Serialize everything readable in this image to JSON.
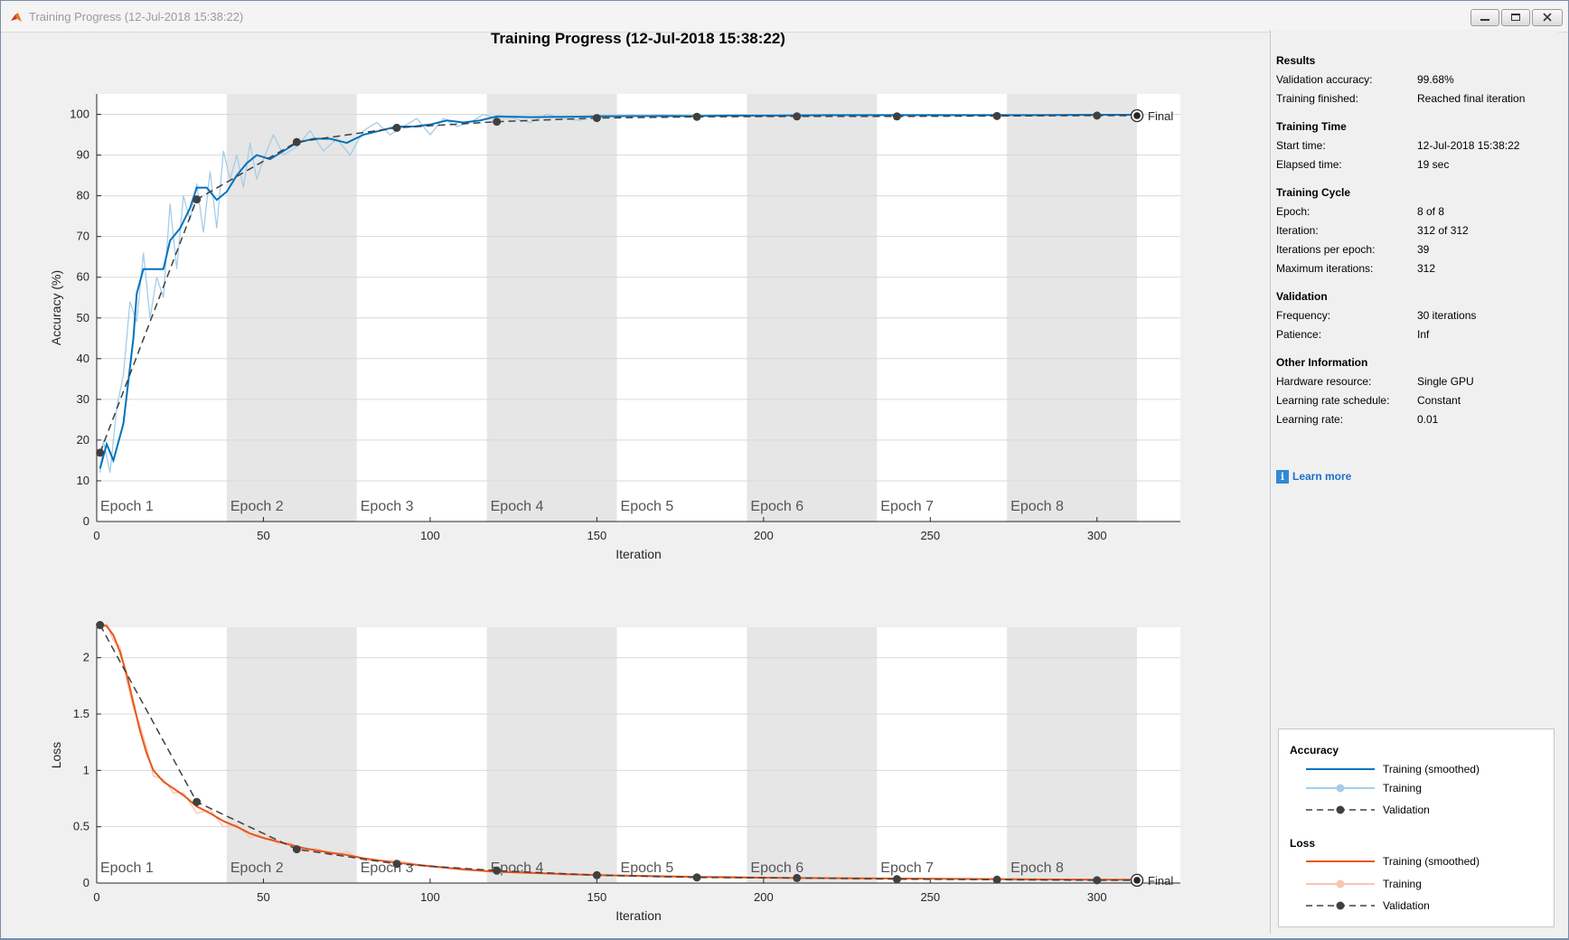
{
  "window": {
    "title": "Training Progress (12-Jul-2018 15:38:22)"
  },
  "colors": {
    "accuracy_smoothed": "#0072bd",
    "accuracy_raw": "#a6cde8",
    "loss_smoothed": "#e8551a",
    "loss_raw": "#f6c6b0",
    "validation": "#404040",
    "epoch_band": "#e6e6e6"
  },
  "chart_data": [
    {
      "type": "line",
      "title": "Training Progress (12-Jul-2018 15:38:22)",
      "xlabel": "Iteration",
      "ylabel": "Accuracy (%)",
      "xlim": [
        0,
        325
      ],
      "ylim": [
        0,
        105
      ],
      "xticks": [
        "0",
        "50",
        "100",
        "150",
        "200",
        "250",
        "300"
      ],
      "yticks": [
        "0",
        "10",
        "20",
        "30",
        "40",
        "50",
        "60",
        "70",
        "80",
        "90",
        "100"
      ],
      "epoch_labels": [
        "Epoch 1",
        "Epoch 2",
        "Epoch 3",
        "Epoch 4",
        "Epoch 5",
        "Epoch 6",
        "Epoch 7",
        "Epoch 8"
      ],
      "final_label": "Final",
      "series": [
        {
          "name": "Training (smoothed)",
          "x": [
            1,
            3,
            5,
            8,
            11,
            12,
            14,
            16,
            18,
            20,
            22,
            25,
            28,
            30,
            33,
            36,
            39,
            42,
            45,
            48,
            52,
            56,
            60,
            65,
            70,
            75,
            80,
            85,
            90,
            95,
            100,
            105,
            110,
            115,
            120,
            130,
            140,
            150,
            160,
            170,
            180,
            190,
            200,
            220,
            240,
            260,
            280,
            300,
            312
          ],
          "values": [
            13,
            19,
            15,
            24,
            45,
            56,
            62,
            62,
            62,
            62,
            69,
            72,
            77,
            82,
            82,
            79,
            81,
            85,
            88,
            90,
            89,
            91,
            93,
            94,
            94,
            93,
            95,
            96,
            97,
            97,
            97.5,
            98.5,
            98,
            98.5,
            99.5,
            99.3,
            99.4,
            99.5,
            99.6,
            99.6,
            99.6,
            99.7,
            99.7,
            99.8,
            99.8,
            99.8,
            99.8,
            99.9,
            99.9
          ]
        },
        {
          "name": "Training",
          "x": [
            1,
            2,
            4,
            6,
            8,
            10,
            12,
            14,
            16,
            18,
            20,
            22,
            24,
            26,
            28,
            30,
            32,
            34,
            36,
            38,
            40,
            42,
            44,
            46,
            48,
            50,
            53,
            56,
            60,
            64,
            68,
            72,
            76,
            80,
            84,
            88,
            92,
            96,
            100,
            104,
            108,
            112,
            116,
            120,
            125,
            130,
            135,
            140,
            145,
            150,
            160,
            170,
            180,
            190,
            200,
            220,
            240,
            260,
            280,
            300,
            312
          ],
          "values": [
            12,
            20,
            12,
            28,
            36,
            54,
            49,
            66,
            50,
            60,
            55,
            78,
            62,
            80,
            74,
            83,
            71,
            86,
            72,
            91,
            84,
            90,
            82,
            93,
            84,
            89,
            95,
            90,
            92,
            96,
            91,
            94,
            90,
            96,
            98,
            95,
            97,
            99,
            95,
            99,
            97,
            98,
            100,
            99,
            99,
            98,
            100,
            99,
            98.5,
            99.8,
            99.5,
            99.8,
            99.6,
            99.7,
            99.8,
            99.9,
            99.8,
            99.9,
            99.9,
            99.9,
            99.9
          ]
        },
        {
          "name": "Validation",
          "x": [
            1,
            30,
            60,
            90,
            120,
            150,
            180,
            210,
            240,
            270,
            300,
            312
          ],
          "values": [
            16.9,
            79.1,
            93.2,
            96.7,
            98.2,
            99.1,
            99.4,
            99.5,
            99.5,
            99.6,
            99.7,
            99.68
          ]
        }
      ]
    },
    {
      "type": "line",
      "xlabel": "Iteration",
      "ylabel": "Loss",
      "xlim": [
        0,
        325
      ],
      "ylim": [
        0,
        2.27
      ],
      "xticks": [
        "0",
        "50",
        "100",
        "150",
        "200",
        "250",
        "300"
      ],
      "yticks": [
        "0",
        "0.5",
        "1",
        "1.5",
        "2"
      ],
      "epoch_labels": [
        "Epoch 1",
        "Epoch 2",
        "Epoch 3",
        "Epoch 4",
        "Epoch 5",
        "Epoch 6",
        "Epoch 7",
        "Epoch 8"
      ],
      "final_label": "Final",
      "series": [
        {
          "name": "Training (smoothed)",
          "x": [
            1,
            3,
            5,
            7,
            9,
            11,
            13,
            15,
            17,
            20,
            23,
            26,
            30,
            34,
            38,
            42,
            46,
            50,
            54,
            58,
            62,
            66,
            70,
            75,
            80,
            90,
            100,
            110,
            120,
            130,
            140,
            150,
            170,
            190,
            210,
            240,
            270,
            300,
            312
          ],
          "values": [
            2.3,
            2.28,
            2.2,
            2.05,
            1.85,
            1.6,
            1.35,
            1.15,
            1.0,
            0.9,
            0.84,
            0.78,
            0.68,
            0.62,
            0.55,
            0.5,
            0.44,
            0.4,
            0.37,
            0.34,
            0.31,
            0.29,
            0.27,
            0.25,
            0.22,
            0.18,
            0.15,
            0.12,
            0.1,
            0.09,
            0.08,
            0.07,
            0.06,
            0.05,
            0.045,
            0.04,
            0.035,
            0.03,
            0.03
          ]
        },
        {
          "name": "Training",
          "x": [
            1,
            3,
            5,
            7,
            9,
            11,
            13,
            15,
            17,
            20,
            23,
            26,
            30,
            34,
            38,
            42,
            46,
            50,
            54,
            58,
            62,
            66,
            70,
            75,
            80,
            90,
            100,
            110,
            120,
            130,
            140,
            150,
            170,
            190,
            210,
            240,
            270,
            300,
            312
          ],
          "values": [
            2.25,
            2.3,
            2.15,
            2.1,
            1.8,
            1.55,
            1.4,
            1.2,
            0.95,
            0.92,
            0.8,
            0.8,
            0.62,
            0.65,
            0.5,
            0.52,
            0.4,
            0.45,
            0.35,
            0.36,
            0.28,
            0.31,
            0.25,
            0.28,
            0.2,
            0.2,
            0.14,
            0.13,
            0.09,
            0.1,
            0.07,
            0.08,
            0.05,
            0.06,
            0.04,
            0.045,
            0.03,
            0.035,
            0.03
          ]
        },
        {
          "name": "Validation",
          "x": [
            1,
            30,
            60,
            90,
            120,
            150,
            180,
            210,
            240,
            270,
            300,
            312
          ],
          "values": [
            2.29,
            0.72,
            0.3,
            0.17,
            0.11,
            0.07,
            0.05,
            0.045,
            0.035,
            0.03,
            0.025,
            0.025
          ]
        }
      ]
    }
  ],
  "results": {
    "heading": "Results",
    "rows": [
      {
        "label": "Validation accuracy:",
        "value": "99.68%"
      },
      {
        "label": "Training finished:",
        "value": "Reached final iteration"
      }
    ]
  },
  "training_time": {
    "heading": "Training Time",
    "rows": [
      {
        "label": "Start time:",
        "value": "12-Jul-2018 15:38:22"
      },
      {
        "label": "Elapsed time:",
        "value": "19 sec"
      }
    ]
  },
  "training_cycle": {
    "heading": "Training Cycle",
    "rows": [
      {
        "label": "Epoch:",
        "value": "8 of 8"
      },
      {
        "label": "Iteration:",
        "value": "312 of 312"
      },
      {
        "label": "Iterations per epoch:",
        "value": "39"
      },
      {
        "label": "Maximum iterations:",
        "value": "312"
      }
    ]
  },
  "validation": {
    "heading": "Validation",
    "rows": [
      {
        "label": "Frequency:",
        "value": "30 iterations"
      },
      {
        "label": "Patience:",
        "value": "Inf"
      }
    ]
  },
  "other_info": {
    "heading": "Other Information",
    "rows": [
      {
        "label": "Hardware resource:",
        "value": "Single GPU"
      },
      {
        "label": "Learning rate schedule:",
        "value": "Constant"
      },
      {
        "label": "Learning rate:",
        "value": "0.01"
      }
    ]
  },
  "learn_more": "Learn more",
  "legend": {
    "accuracy_heading": "Accuracy",
    "loss_heading": "Loss",
    "smoothed": "Training (smoothed)",
    "training": "Training",
    "validation": "Validation"
  }
}
